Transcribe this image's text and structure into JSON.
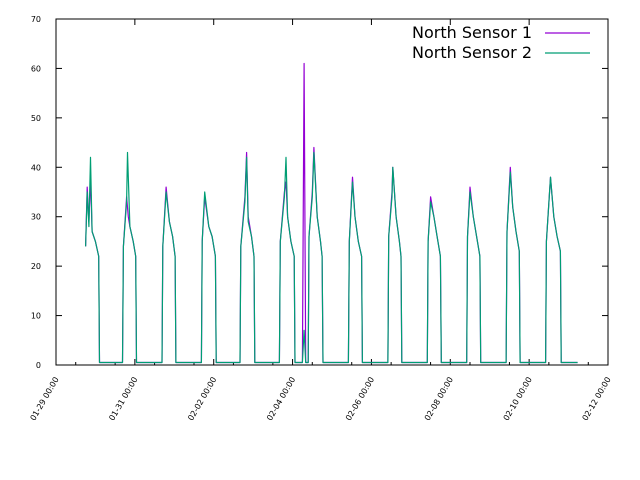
{
  "chart_data": {
    "type": "line",
    "title": "",
    "xlabel": "",
    "ylabel": "",
    "ylim": [
      0,
      70
    ],
    "yticks": [
      0,
      10,
      20,
      30,
      40,
      50,
      60,
      70
    ],
    "xlim": [
      "2024-01-29 00:00",
      "2024-02-12 00:00"
    ],
    "xticks": [
      "01-29 00:00",
      "01-31 00:00",
      "02-02 00:00",
      "02-04 00:00",
      "02-06 00:00",
      "02-08 00:00",
      "02-10 00:00",
      "02-12 00:00"
    ],
    "grid": false,
    "legend": "top-right",
    "series": [
      {
        "name": "North Sensor 1",
        "color": "#9400d3",
        "points": [
          [
            "2024-01-29 18:00",
            24
          ],
          [
            "2024-01-29 19:00",
            36
          ],
          [
            "2024-01-29 20:00",
            29
          ],
          [
            "2024-01-29 21:00",
            38
          ],
          [
            "2024-01-29 22:00",
            27
          ],
          [
            "2024-01-30 00:00",
            25
          ],
          [
            "2024-01-30 02:00",
            22
          ],
          [
            "2024-01-30 02:30",
            0.5
          ],
          [
            "2024-01-30 16:30",
            0.5
          ],
          [
            "2024-01-30 17:00",
            24
          ],
          [
            "2024-01-30 19:00",
            34
          ],
          [
            "2024-01-30 20:00",
            30
          ],
          [
            "2024-01-30 21:00",
            28
          ],
          [
            "2024-01-30 23:00",
            25
          ],
          [
            "2024-01-31 00:30",
            22
          ],
          [
            "2024-01-31 01:00",
            0.5
          ],
          [
            "2024-01-31 16:30",
            0.5
          ],
          [
            "2024-01-31 17:00",
            24
          ],
          [
            "2024-01-31 19:00",
            36
          ],
          [
            "2024-01-31 21:00",
            29
          ],
          [
            "2024-01-31 23:00",
            26
          ],
          [
            "2024-02-01 00:30",
            22
          ],
          [
            "2024-02-01 01:00",
            0.5
          ],
          [
            "2024-02-01 16:30",
            0.5
          ],
          [
            "2024-02-01 17:00",
            25
          ],
          [
            "2024-02-01 18:30",
            34
          ],
          [
            "2024-02-01 21:00",
            28
          ],
          [
            "2024-02-01 23:00",
            26
          ],
          [
            "2024-02-02 01:00",
            22
          ],
          [
            "2024-02-02 01:30",
            0.5
          ],
          [
            "2024-02-02 16:00",
            0.5
          ],
          [
            "2024-02-02 16:30",
            24
          ],
          [
            "2024-02-02 19:00",
            34
          ],
          [
            "2024-02-02 20:00",
            43
          ],
          [
            "2024-02-02 21:00",
            30
          ],
          [
            "2024-02-02 23:00",
            26
          ],
          [
            "2024-02-03 00:30",
            22
          ],
          [
            "2024-02-03 01:00",
            0.5
          ],
          [
            "2024-02-03 16:00",
            0.5
          ],
          [
            "2024-02-03 16:30",
            25
          ],
          [
            "2024-02-03 19:00",
            35
          ],
          [
            "2024-02-03 20:00",
            37
          ],
          [
            "2024-02-03 21:00",
            30
          ],
          [
            "2024-02-03 23:00",
            25
          ],
          [
            "2024-02-04 01:00",
            22
          ],
          [
            "2024-02-04 01:30",
            0.5
          ],
          [
            "2024-02-04 06:00",
            0.5
          ],
          [
            "2024-02-04 07:00",
            61
          ],
          [
            "2024-02-04 08:00",
            0.5
          ],
          [
            "2024-02-04 09:30",
            0.5
          ],
          [
            "2024-02-04 10:00",
            26
          ],
          [
            "2024-02-04 12:00",
            35
          ],
          [
            "2024-02-04 13:00",
            44
          ],
          [
            "2024-02-04 15:00",
            30
          ],
          [
            "2024-02-04 17:00",
            25
          ],
          [
            "2024-02-04 18:00",
            22
          ],
          [
            "2024-02-04 18:30",
            0.5
          ],
          [
            "2024-02-05 10:00",
            0.5
          ],
          [
            "2024-02-05 10:30",
            25
          ],
          [
            "2024-02-05 12:30",
            38
          ],
          [
            "2024-02-05 14:00",
            30
          ],
          [
            "2024-02-05 16:00",
            25
          ],
          [
            "2024-02-05 18:00",
            22
          ],
          [
            "2024-02-05 18:30",
            0.5
          ],
          [
            "2024-02-06 10:00",
            0.5
          ],
          [
            "2024-02-06 10:30",
            26
          ],
          [
            "2024-02-06 12:30",
            35
          ],
          [
            "2024-02-06 13:00",
            40
          ],
          [
            "2024-02-06 15:00",
            30
          ],
          [
            "2024-02-06 17:00",
            25
          ],
          [
            "2024-02-06 18:00",
            22
          ],
          [
            "2024-02-06 18:30",
            0.5
          ],
          [
            "2024-02-07 10:00",
            0.5
          ],
          [
            "2024-02-07 10:30",
            25
          ],
          [
            "2024-02-07 12:00",
            34
          ],
          [
            "2024-02-07 14:00",
            30
          ],
          [
            "2024-02-07 16:00",
            26
          ],
          [
            "2024-02-07 18:00",
            22
          ],
          [
            "2024-02-07 18:30",
            0.5
          ],
          [
            "2024-02-08 10:00",
            0.5
          ],
          [
            "2024-02-08 10:30",
            26
          ],
          [
            "2024-02-08 12:00",
            36
          ],
          [
            "2024-02-08 14:00",
            30
          ],
          [
            "2024-02-08 16:00",
            26
          ],
          [
            "2024-02-08 18:00",
            22
          ],
          [
            "2024-02-08 18:30",
            0.5
          ],
          [
            "2024-02-09 10:00",
            0.5
          ],
          [
            "2024-02-09 10:30",
            27
          ],
          [
            "2024-02-09 12:30",
            40
          ],
          [
            "2024-02-09 14:00",
            32
          ],
          [
            "2024-02-09 16:00",
            27
          ],
          [
            "2024-02-09 18:00",
            23
          ],
          [
            "2024-02-09 18:30",
            0.5
          ],
          [
            "2024-02-10 10:00",
            0.5
          ],
          [
            "2024-02-10 10:30",
            25
          ],
          [
            "2024-02-10 13:00",
            38
          ],
          [
            "2024-02-10 15:00",
            30
          ],
          [
            "2024-02-10 17:00",
            26
          ],
          [
            "2024-02-10 19:00",
            23
          ],
          [
            "2024-02-10 19:30",
            0.5
          ],
          [
            "2024-02-11 05:30",
            0.5
          ]
        ]
      },
      {
        "name": "North Sensor 2",
        "color": "#009e73",
        "points": [
          [
            "2024-01-29 18:00",
            24
          ],
          [
            "2024-01-29 19:00",
            35
          ],
          [
            "2024-01-29 20:00",
            28
          ],
          [
            "2024-01-29 21:00",
            42
          ],
          [
            "2024-01-29 22:00",
            27
          ],
          [
            "2024-01-30 00:00",
            25
          ],
          [
            "2024-01-30 02:00",
            22
          ],
          [
            "2024-01-30 02:30",
            0.5
          ],
          [
            "2024-01-30 16:30",
            0.5
          ],
          [
            "2024-01-30 17:00",
            24
          ],
          [
            "2024-01-30 19:00",
            33
          ],
          [
            "2024-01-30 19:30",
            43
          ],
          [
            "2024-01-30 21:00",
            28
          ],
          [
            "2024-01-30 23:00",
            25
          ],
          [
            "2024-01-31 00:30",
            22
          ],
          [
            "2024-01-31 01:00",
            0.5
          ],
          [
            "2024-01-31 16:30",
            0.5
          ],
          [
            "2024-01-31 17:00",
            24
          ],
          [
            "2024-01-31 19:00",
            35
          ],
          [
            "2024-01-31 21:00",
            29
          ],
          [
            "2024-01-31 23:00",
            26
          ],
          [
            "2024-02-01 00:30",
            22
          ],
          [
            "2024-02-01 01:00",
            0.5
          ],
          [
            "2024-02-01 16:30",
            0.5
          ],
          [
            "2024-02-01 17:00",
            25
          ],
          [
            "2024-02-01 18:30",
            35
          ],
          [
            "2024-02-01 21:00",
            28
          ],
          [
            "2024-02-01 23:00",
            26
          ],
          [
            "2024-02-02 01:00",
            22
          ],
          [
            "2024-02-02 01:30",
            0.5
          ],
          [
            "2024-02-02 16:00",
            0.5
          ],
          [
            "2024-02-02 16:30",
            24
          ],
          [
            "2024-02-02 19:00",
            33
          ],
          [
            "2024-02-02 20:00",
            42
          ],
          [
            "2024-02-02 21:00",
            29
          ],
          [
            "2024-02-02 23:00",
            26
          ],
          [
            "2024-02-03 00:30",
            22
          ],
          [
            "2024-02-03 01:00",
            0.5
          ],
          [
            "2024-02-03 16:00",
            0.5
          ],
          [
            "2024-02-03 16:30",
            25
          ],
          [
            "2024-02-03 19:00",
            34
          ],
          [
            "2024-02-03 20:00",
            42
          ],
          [
            "2024-02-03 21:00",
            30
          ],
          [
            "2024-02-03 23:00",
            25
          ],
          [
            "2024-02-04 01:00",
            22
          ],
          [
            "2024-02-04 01:30",
            0.5
          ],
          [
            "2024-02-04 06:00",
            0.5
          ],
          [
            "2024-02-04 07:00",
            7
          ],
          [
            "2024-02-04 08:00",
            0.5
          ],
          [
            "2024-02-04 09:30",
            0.5
          ],
          [
            "2024-02-04 10:00",
            26
          ],
          [
            "2024-02-04 12:00",
            34
          ],
          [
            "2024-02-04 13:00",
            43
          ],
          [
            "2024-02-04 15:00",
            30
          ],
          [
            "2024-02-04 17:00",
            25
          ],
          [
            "2024-02-04 18:00",
            22
          ],
          [
            "2024-02-04 18:30",
            0.5
          ],
          [
            "2024-02-05 10:00",
            0.5
          ],
          [
            "2024-02-05 10:30",
            25
          ],
          [
            "2024-02-05 12:30",
            37
          ],
          [
            "2024-02-05 14:00",
            30
          ],
          [
            "2024-02-05 16:00",
            25
          ],
          [
            "2024-02-05 18:00",
            22
          ],
          [
            "2024-02-05 18:30",
            0.5
          ],
          [
            "2024-02-06 10:00",
            0.5
          ],
          [
            "2024-02-06 10:30",
            26
          ],
          [
            "2024-02-06 12:30",
            34
          ],
          [
            "2024-02-06 13:00",
            40
          ],
          [
            "2024-02-06 15:00",
            30
          ],
          [
            "2024-02-06 17:00",
            25
          ],
          [
            "2024-02-06 18:00",
            22
          ],
          [
            "2024-02-06 18:30",
            0.5
          ],
          [
            "2024-02-07 10:00",
            0.5
          ],
          [
            "2024-02-07 10:30",
            25
          ],
          [
            "2024-02-07 12:00",
            33
          ],
          [
            "2024-02-07 14:00",
            30
          ],
          [
            "2024-02-07 16:00",
            26
          ],
          [
            "2024-02-07 18:00",
            22
          ],
          [
            "2024-02-07 18:30",
            0.5
          ],
          [
            "2024-02-08 10:00",
            0.5
          ],
          [
            "2024-02-08 10:30",
            26
          ],
          [
            "2024-02-08 12:00",
            35
          ],
          [
            "2024-02-08 14:00",
            30
          ],
          [
            "2024-02-08 16:00",
            26
          ],
          [
            "2024-02-08 18:00",
            22
          ],
          [
            "2024-02-08 18:30",
            0.5
          ],
          [
            "2024-02-09 10:00",
            0.5
          ],
          [
            "2024-02-09 10:30",
            27
          ],
          [
            "2024-02-09 12:30",
            39
          ],
          [
            "2024-02-09 14:00",
            32
          ],
          [
            "2024-02-09 16:00",
            27
          ],
          [
            "2024-02-09 18:00",
            23
          ],
          [
            "2024-02-09 18:30",
            0.5
          ],
          [
            "2024-02-10 10:00",
            0.5
          ],
          [
            "2024-02-10 10:30",
            25
          ],
          [
            "2024-02-10 13:00",
            38
          ],
          [
            "2024-02-10 15:00",
            30
          ],
          [
            "2024-02-10 17:00",
            26
          ],
          [
            "2024-02-10 19:00",
            23
          ],
          [
            "2024-02-10 19:30",
            0.5
          ],
          [
            "2024-02-11 05:30",
            0.5
          ]
        ]
      }
    ]
  }
}
